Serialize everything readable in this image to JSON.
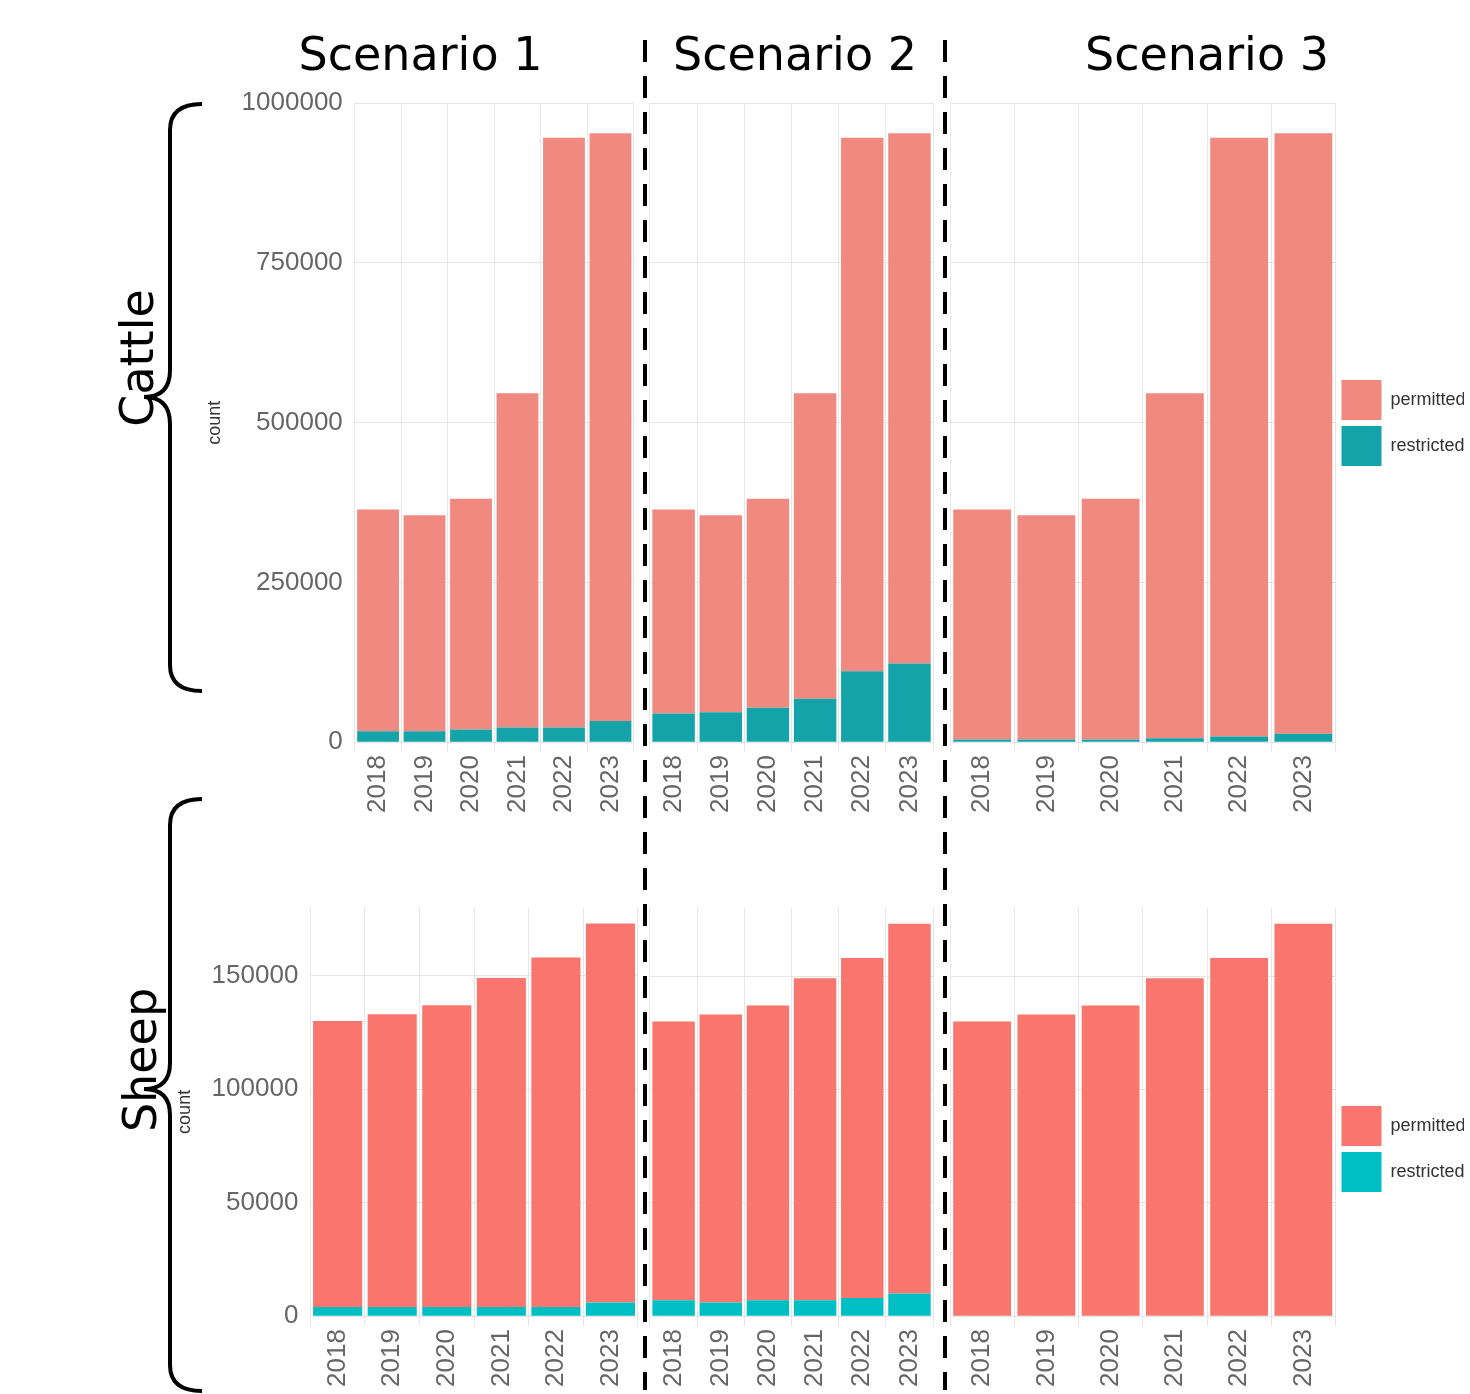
{
  "chart_data": [
    {
      "type": "bar",
      "stacked": true,
      "title": "Scenario 1",
      "ylabel": "count",
      "annotations": [
        "Cattle"
      ],
      "categories": [
        "2018",
        "2019",
        "2020",
        "2021",
        "2022",
        "2023"
      ],
      "ylim": [
        0,
        1000000
      ],
      "yticks": [
        0,
        250000,
        500000,
        750000,
        1000000
      ],
      "grid": true,
      "legend": false,
      "series": [
        {
          "color": "#14a3a8",
          "values": [
            17000,
            17000,
            20000,
            23000,
            23000,
            33000
          ]
        },
        {
          "color": "#f08a80",
          "values": [
            347000,
            338000,
            361000,
            523000,
            923000,
            920000
          ]
        }
      ]
    },
    {
      "type": "bar",
      "stacked": true,
      "title": "Scenario 2",
      "categories": [
        "2018",
        "2019",
        "2020",
        "2021",
        "2022",
        "2023"
      ],
      "ylim": [
        0,
        1000000
      ],
      "yticks": [
        0,
        250000,
        500000,
        750000,
        1000000
      ],
      "grid": true,
      "legend": false,
      "tick_labels": "x",
      "series": [
        {
          "color": "#14a3a8",
          "values": [
            45000,
            47000,
            54000,
            68000,
            111000,
            123000
          ]
        },
        {
          "color": "#f08a80",
          "values": [
            319000,
            308000,
            327000,
            478000,
            835000,
            830000
          ]
        }
      ]
    },
    {
      "type": "bar",
      "stacked": true,
      "title": "Scenario 3",
      "categories": [
        "2018",
        "2019",
        "2020",
        "2021",
        "2022",
        "2023"
      ],
      "ylim": [
        0,
        1000000
      ],
      "yticks": [
        0,
        250000,
        500000,
        750000,
        1000000
      ],
      "grid": true,
      "legend": "right",
      "tick_labels": "x",
      "series": [
        {
          "name": "restricted",
          "color": "#14a3a8",
          "values": [
            4000,
            4000,
            4000,
            6000,
            9000,
            13000
          ]
        },
        {
          "name": "permitted",
          "color": "#f08a80",
          "values": [
            360000,
            351000,
            377000,
            540000,
            937000,
            940000
          ]
        }
      ]
    },
    {
      "type": "bar",
      "stacked": true,
      "ylabel": "count",
      "annotations": [
        "Sheep"
      ],
      "categories": [
        "2018",
        "2019",
        "2020",
        "2021",
        "2022",
        "2023"
      ],
      "ylim": [
        0,
        180000
      ],
      "yticks": [
        0,
        50000,
        100000,
        150000
      ],
      "grid": true,
      "legend": false,
      "series": [
        {
          "color": "#00bfc4",
          "values": [
            4000,
            4000,
            4000,
            4000,
            4000,
            6000
          ]
        },
        {
          "color": "#f8766d",
          "values": [
            126000,
            129000,
            133000,
            145000,
            154000,
            167000
          ]
        }
      ]
    },
    {
      "type": "bar",
      "stacked": true,
      "categories": [
        "2018",
        "2019",
        "2020",
        "2021",
        "2022",
        "2023"
      ],
      "ylim": [
        0,
        180000
      ],
      "yticks": [
        0,
        50000,
        100000,
        150000
      ],
      "grid": true,
      "legend": false,
      "tick_labels": "x",
      "series": [
        {
          "color": "#00bfc4",
          "values": [
            7000,
            6000,
            7000,
            7000,
            8000,
            10000
          ]
        },
        {
          "color": "#f8766d",
          "values": [
            123000,
            127000,
            130000,
            142000,
            150000,
            163000
          ]
        }
      ]
    },
    {
      "type": "bar",
      "stacked": true,
      "categories": [
        "2018",
        "2019",
        "2020",
        "2021",
        "2022",
        "2023"
      ],
      "ylim": [
        0,
        180000
      ],
      "yticks": [
        0,
        50000,
        100000,
        150000
      ],
      "grid": true,
      "legend": "right",
      "tick_labels": "x",
      "series": [
        {
          "name": "restricted",
          "color": "#00bfc4",
          "values": [
            0,
            0,
            0,
            0,
            0,
            0
          ]
        },
        {
          "name": "permitted",
          "color": "#f8766d",
          "values": [
            130000,
            133000,
            137000,
            149000,
            158000,
            173000
          ]
        }
      ]
    }
  ]
}
